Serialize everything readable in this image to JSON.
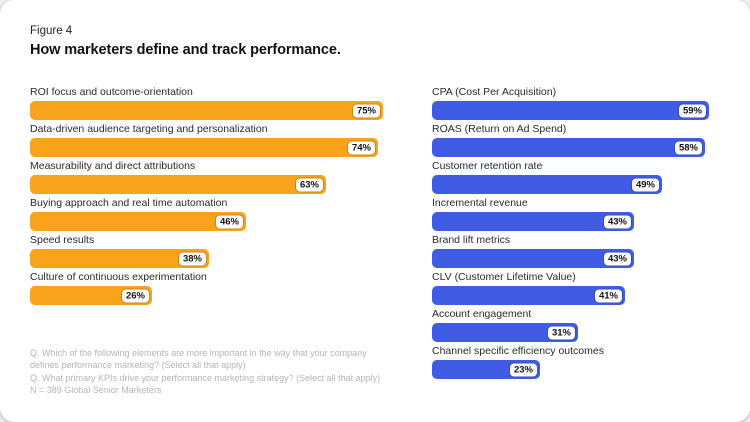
{
  "figure": {
    "label": "Figure 4",
    "title": "How marketers define and track performance."
  },
  "chart_data": [
    {
      "type": "bar",
      "orientation": "horizontal",
      "bar_color": "#F9A21C",
      "value_suffix": "%",
      "categories": [
        "ROI focus and outcome-orientation",
        "Data-driven audience targeting and personalization",
        "Measurability and direct attributions",
        "Buying approach and real time automation",
        "Speed results",
        "Culture of continuous experimentation"
      ],
      "values": [
        75,
        74,
        63,
        46,
        38,
        26
      ],
      "value_labels": [
        "75%",
        "74%",
        "63%",
        "46%",
        "38%",
        "26%"
      ]
    },
    {
      "type": "bar",
      "orientation": "horizontal",
      "bar_color": "#415CE4",
      "value_suffix": "%",
      "categories": [
        "CPA (Cost Per Acquisition)",
        "ROAS (Return on Ad Spend)",
        "Customer retention rate",
        "Incremental revenue",
        "Brand lift metrics",
        "CLV (Customer Lifetime Value)",
        "Account engagement",
        "Channel specific efficiency outcomes"
      ],
      "values": [
        59,
        58,
        49,
        43,
        43,
        41,
        31,
        23
      ],
      "value_labels": [
        "59%",
        "58%",
        "49%",
        "43%",
        "43%",
        "41%",
        "31%",
        "23%"
      ]
    }
  ],
  "footnotes": [
    "Q. Which of the following elements are more important in the way that your company",
    "defines performance marketing? (Select all that apply)",
    "Q. What primary KPIs drive your performance marketing strategy? (Select all that apply)",
    "N = 389 Global Senior Marketers"
  ]
}
